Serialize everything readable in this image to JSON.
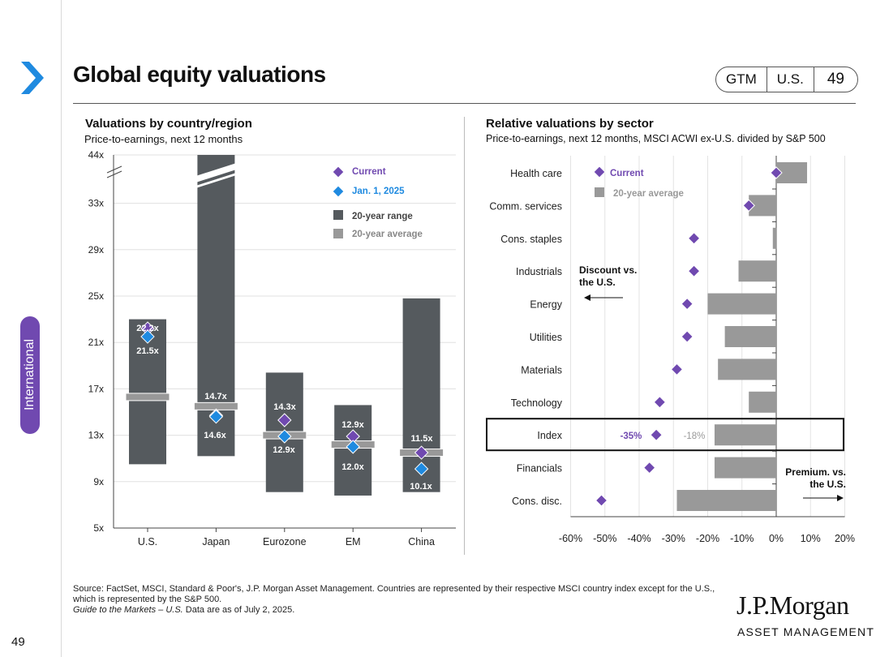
{
  "header": {
    "title": "Global equity valuations",
    "badge": [
      "GTM",
      "U.S.",
      "49"
    ],
    "side_tab": "International",
    "page_number": "49"
  },
  "left_chart": {
    "title": "Valuations by country/region",
    "subtitle": "Price-to-earnings, next 12 months"
  },
  "right_chart": {
    "title": "Relative valuations by sector",
    "subtitle": "Price-to-earnings, next 12 months, MSCI ACWI ex-U.S. divided by S&P 500"
  },
  "chart_data": [
    {
      "type": "range-bar",
      "title": "Valuations by country/region",
      "ylabel": "Price-to-earnings, next 12 months",
      "y_ticks": [
        "5x",
        "9x",
        "13x",
        "17x",
        "21x",
        "25x",
        "29x",
        "33x",
        "44x"
      ],
      "y_axis_break": true,
      "categories": [
        "U.S.",
        "Japan",
        "Eurozone",
        "EM",
        "China"
      ],
      "range_low": [
        10.5,
        11.2,
        8.1,
        7.8,
        8.1
      ],
      "range_high": [
        23.0,
        44,
        18.4,
        15.6,
        24.8
      ],
      "average": [
        16.3,
        15.5,
        13.0,
        12.2,
        11.5
      ],
      "current": [
        22.2,
        14.7,
        14.3,
        12.9,
        11.5
      ],
      "jan_2025": [
        21.5,
        14.6,
        12.9,
        12.0,
        10.1
      ],
      "current_labels": [
        "22.2x",
        "14.7x",
        "14.3x",
        "12.9x",
        "11.5x"
      ],
      "jan_labels": [
        "21.5x",
        "14.6x",
        "12.9x",
        "12.0x",
        "10.1x"
      ],
      "legend": [
        "Current",
        "Jan. 1, 2025",
        "20-year range",
        "20-year average"
      ],
      "colors": {
        "range": "#555a5e",
        "average": "#999999",
        "current": "#7049b0",
        "jan": "#1f8ae0"
      }
    },
    {
      "type": "bar",
      "orientation": "horizontal",
      "title": "Relative valuations by sector",
      "categories": [
        "Health care",
        "Comm. services",
        "Cons. staples",
        "Industrials",
        "Energy",
        "Utilities",
        "Materials",
        "Technology",
        "Index",
        "Financials",
        "Cons. disc."
      ],
      "twenty_year_average": [
        9,
        -8,
        -1,
        -11,
        -20,
        -15,
        -17,
        -8,
        -18,
        -18,
        -29
      ],
      "current": [
        0,
        -8,
        -24,
        -24,
        -26,
        -26,
        -29,
        -34,
        -35,
        -37,
        -51
      ],
      "index_labels": {
        "current": "-35%",
        "average": "-18%"
      },
      "x_ticks": [
        "-60%",
        "-50%",
        "-40%",
        "-30%",
        "-20%",
        "-10%",
        "0%",
        "10%",
        "20%"
      ],
      "xlim": [
        -60,
        20
      ],
      "legend": [
        "Current",
        "20-year average"
      ],
      "annotations": {
        "discount": "Discount vs. the U.S.",
        "premium": "Premium. vs. the U.S."
      },
      "colors": {
        "bar": "#999999",
        "current": "#7049b0"
      }
    }
  ],
  "footer": {
    "source": "Source: FactSet, MSCI, Standard & Poor's, J.P. Morgan Asset Management. Countries are represented by their respective MSCI country index except for the U.S., which is represented by the S&P 500.",
    "guide": "Guide to the Markets – U.S.",
    "date": " Data are as of July 2, 2025.",
    "logo_name": "J.P.Morgan",
    "logo_sub": "ASSET MANAGEMENT"
  }
}
